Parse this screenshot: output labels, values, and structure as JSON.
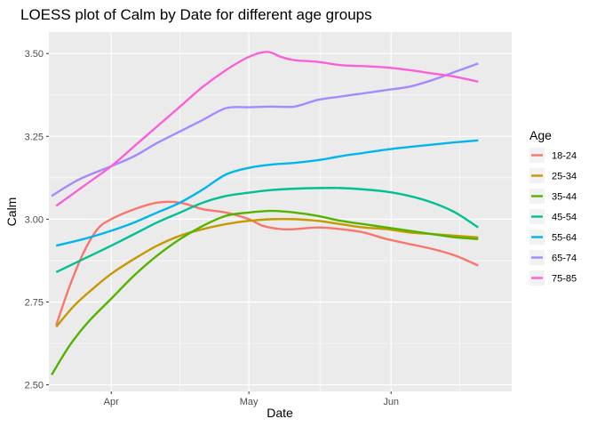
{
  "chart_data": {
    "type": "line",
    "title": "LOESS plot of Calm by Date for different age groups",
    "xlabel": "Date",
    "ylabel": "Calm",
    "x_ticks": [
      {
        "label": "Apr",
        "x": 0
      },
      {
        "label": "May",
        "x": 30
      },
      {
        "label": "Jun",
        "x": 61
      }
    ],
    "y_ticks": [
      2.5,
      2.75,
      3.0,
      3.25,
      3.5
    ],
    "xlim": [
      -13.6,
      87.3
    ],
    "ylim": [
      2.48,
      3.565
    ],
    "grid": true,
    "legend": {
      "title": "Age",
      "position": "right"
    },
    "series": [
      {
        "name": "18-24",
        "color": "#F8766D",
        "points": [
          [
            -12,
            2.68
          ],
          [
            -9,
            2.8
          ],
          [
            -6,
            2.9
          ],
          [
            -3,
            2.97
          ],
          [
            0,
            3.0
          ],
          [
            5,
            3.03
          ],
          [
            10,
            3.05
          ],
          [
            15,
            3.05
          ],
          [
            20,
            3.03
          ],
          [
            25,
            3.02
          ],
          [
            30,
            3.0
          ],
          [
            33,
            2.98
          ],
          [
            37,
            2.97
          ],
          [
            40,
            2.97
          ],
          [
            45,
            2.975
          ],
          [
            50,
            2.97
          ],
          [
            55,
            2.96
          ],
          [
            60,
            2.94
          ],
          [
            65,
            2.925
          ],
          [
            70,
            2.91
          ],
          [
            75,
            2.89
          ],
          [
            80,
            2.86
          ]
        ]
      },
      {
        "name": "25-34",
        "color": "#C49A00",
        "points": [
          [
            -12,
            2.675
          ],
          [
            -8,
            2.74
          ],
          [
            -4,
            2.79
          ],
          [
            0,
            2.835
          ],
          [
            5,
            2.88
          ],
          [
            10,
            2.92
          ],
          [
            15,
            2.95
          ],
          [
            20,
            2.97
          ],
          [
            25,
            2.985
          ],
          [
            30,
            2.995
          ],
          [
            35,
            3.0
          ],
          [
            40,
            3.0
          ],
          [
            45,
            2.995
          ],
          [
            50,
            2.985
          ],
          [
            55,
            2.975
          ],
          [
            60,
            2.97
          ],
          [
            65,
            2.96
          ],
          [
            70,
            2.955
          ],
          [
            75,
            2.95
          ],
          [
            80,
            2.945
          ]
        ]
      },
      {
        "name": "35-44",
        "color": "#53B400",
        "points": [
          [
            -13,
            2.53
          ],
          [
            -9,
            2.62
          ],
          [
            -5,
            2.69
          ],
          [
            0,
            2.76
          ],
          [
            5,
            2.83
          ],
          [
            10,
            2.89
          ],
          [
            15,
            2.94
          ],
          [
            20,
            2.98
          ],
          [
            25,
            3.01
          ],
          [
            30,
            3.02
          ],
          [
            35,
            3.025
          ],
          [
            40,
            3.02
          ],
          [
            45,
            3.01
          ],
          [
            50,
            2.995
          ],
          [
            55,
            2.985
          ],
          [
            60,
            2.975
          ],
          [
            65,
            2.965
          ],
          [
            70,
            2.955
          ],
          [
            75,
            2.945
          ],
          [
            80,
            2.94
          ]
        ]
      },
      {
        "name": "45-54",
        "color": "#00C094",
        "points": [
          [
            -12,
            2.84
          ],
          [
            -6,
            2.88
          ],
          [
            0,
            2.92
          ],
          [
            5,
            2.955
          ],
          [
            10,
            2.99
          ],
          [
            15,
            3.02
          ],
          [
            20,
            3.05
          ],
          [
            25,
            3.07
          ],
          [
            30,
            3.08
          ],
          [
            35,
            3.088
          ],
          [
            40,
            3.092
          ],
          [
            45,
            3.094
          ],
          [
            50,
            3.094
          ],
          [
            55,
            3.09
          ],
          [
            60,
            3.083
          ],
          [
            65,
            3.07
          ],
          [
            70,
            3.05
          ],
          [
            75,
            3.02
          ],
          [
            80,
            2.975
          ]
        ]
      },
      {
        "name": "55-64",
        "color": "#00B6EB",
        "points": [
          [
            -12,
            2.92
          ],
          [
            -6,
            2.94
          ],
          [
            0,
            2.965
          ],
          [
            5,
            2.99
          ],
          [
            10,
            3.02
          ],
          [
            15,
            3.05
          ],
          [
            20,
            3.09
          ],
          [
            25,
            3.135
          ],
          [
            30,
            3.155
          ],
          [
            35,
            3.165
          ],
          [
            40,
            3.17
          ],
          [
            45,
            3.178
          ],
          [
            50,
            3.19
          ],
          [
            55,
            3.2
          ],
          [
            60,
            3.21
          ],
          [
            65,
            3.218
          ],
          [
            70,
            3.225
          ],
          [
            75,
            3.232
          ],
          [
            80,
            3.238
          ]
        ]
      },
      {
        "name": "65-74",
        "color": "#A58AFF",
        "points": [
          [
            -13,
            3.07
          ],
          [
            -7,
            3.12
          ],
          [
            0,
            3.16
          ],
          [
            5,
            3.19
          ],
          [
            10,
            3.23
          ],
          [
            15,
            3.265
          ],
          [
            20,
            3.3
          ],
          [
            25,
            3.335
          ],
          [
            30,
            3.338
          ],
          [
            35,
            3.34
          ],
          [
            40,
            3.34
          ],
          [
            45,
            3.36
          ],
          [
            50,
            3.37
          ],
          [
            55,
            3.38
          ],
          [
            60,
            3.39
          ],
          [
            65,
            3.4
          ],
          [
            70,
            3.42
          ],
          [
            75,
            3.445
          ],
          [
            80,
            3.47
          ]
        ]
      },
      {
        "name": "75-85",
        "color": "#FB61D7",
        "points": [
          [
            -12,
            3.04
          ],
          [
            -6,
            3.1
          ],
          [
            0,
            3.16
          ],
          [
            5,
            3.22
          ],
          [
            10,
            3.28
          ],
          [
            15,
            3.34
          ],
          [
            20,
            3.4
          ],
          [
            25,
            3.45
          ],
          [
            30,
            3.49
          ],
          [
            34,
            3.505
          ],
          [
            37,
            3.49
          ],
          [
            40,
            3.48
          ],
          [
            45,
            3.475
          ],
          [
            50,
            3.465
          ],
          [
            55,
            3.462
          ],
          [
            60,
            3.458
          ],
          [
            65,
            3.45
          ],
          [
            70,
            3.44
          ],
          [
            75,
            3.43
          ],
          [
            80,
            3.415
          ]
        ]
      }
    ]
  }
}
